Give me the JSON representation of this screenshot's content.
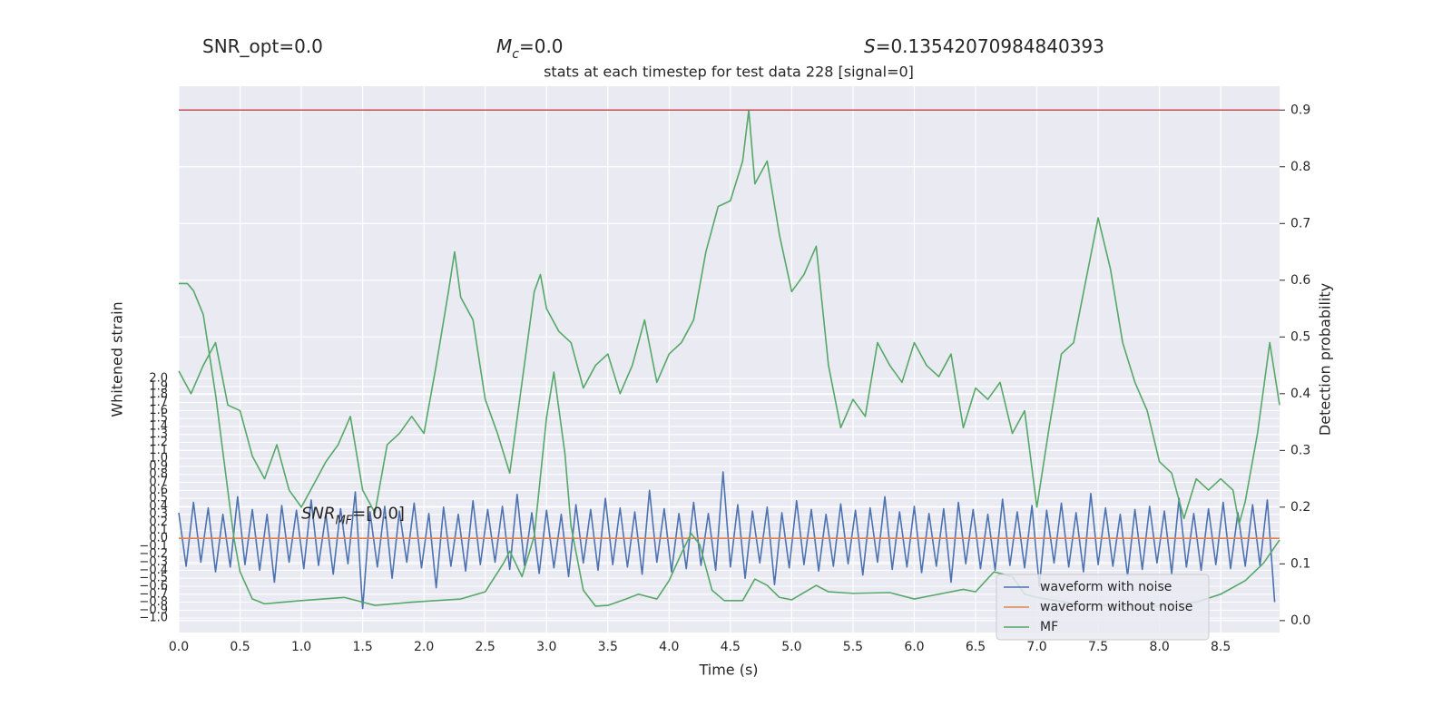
{
  "chart_data": {
    "type": "line",
    "annotations": [
      {
        "text": "SNR_opt=0.0"
      },
      {
        "symbol": "M",
        "subscript": "c",
        "text": "=0.0"
      },
      {
        "symbol": "S",
        "text": "=0.13542070984840393"
      },
      {
        "symbol": "SNR",
        "subscript": "MF",
        "text": "=[0.0]"
      }
    ],
    "title": "stats at each timestep for test data 228 [signal=0]",
    "xlabel": "Time (s)",
    "ylabel": "Whitened strain",
    "y2label": "Detection probability",
    "xlim": [
      0,
      8.98
    ],
    "ylim": [
      -1.18,
      5.66
    ],
    "y2lim": [
      -0.021,
      0.942
    ],
    "xticks": [
      {
        "value": 0,
        "label": "0.0"
      },
      0.5,
      {
        "value": 1,
        "label": "1.0"
      },
      1.5,
      {
        "value": 2,
        "label": "2.0"
      },
      2.5,
      {
        "value": 3,
        "label": "3.0"
      },
      3.5,
      {
        "value": 4,
        "label": "4.0"
      },
      4.5,
      {
        "value": 5,
        "label": "5.0"
      },
      5.5,
      {
        "value": 6,
        "label": "6.0"
      },
      6.5,
      {
        "value": 7,
        "label": "7.0"
      },
      7.5,
      {
        "value": 8,
        "label": "8.0"
      },
      8.5
    ],
    "yticks": [
      {
        "value": -1,
        "label": "−1.0"
      },
      {
        "value": -0.9,
        "label": "−0.9"
      },
      {
        "value": -0.8,
        "label": "−0.8"
      },
      {
        "value": -0.7,
        "label": "−0.7"
      },
      {
        "value": -0.6,
        "label": "−0.6"
      },
      {
        "value": -0.5,
        "label": "−0.5"
      },
      {
        "value": -0.4,
        "label": "−0.4"
      },
      {
        "value": -0.3,
        "label": "−0.3"
      },
      {
        "value": -0.2,
        "label": "−0.2"
      },
      {
        "value": -0.1,
        "label": "−0.1"
      },
      {
        "value": 0,
        "label": "0.0"
      },
      0.1,
      0.2,
      0.3,
      0.4,
      0.5,
      0.6,
      0.7,
      0.8,
      0.9,
      {
        "value": 1,
        "label": "1.0"
      },
      1.1,
      1.2,
      1.3,
      1.4,
      1.5,
      1.6,
      1.7,
      1.8,
      1.9,
      {
        "value": 2,
        "label": "2.0"
      }
    ],
    "y2ticks": [
      {
        "value": 0,
        "label": "0.0"
      },
      0.1,
      0.2,
      0.3,
      0.4,
      0.5,
      0.6,
      0.7,
      0.8,
      0.9
    ],
    "grid": true,
    "legend": "lower right",
    "hlines": [
      {
        "value": 0.9,
        "axis": "y2",
        "color": "#c44e52"
      }
    ],
    "series": [
      {
        "name": "waveform with noise",
        "color": "#4c72b0",
        "axis": "y",
        "x": [
          0,
          0.06,
          0.12,
          0.18,
          0.24,
          0.3,
          0.36,
          0.42,
          0.48,
          0.54,
          0.6,
          0.66,
          0.72,
          0.78,
          0.84,
          0.9,
          0.96,
          1.02,
          1.08,
          1.14,
          1.2,
          1.26,
          1.32,
          1.38,
          1.44,
          1.5,
          1.56,
          1.62,
          1.68,
          1.74,
          1.8,
          1.86,
          1.92,
          1.98,
          2.04,
          2.1,
          2.16,
          2.22,
          2.28,
          2.34,
          2.4,
          2.46,
          2.52,
          2.58,
          2.64,
          2.7,
          2.76,
          2.82,
          2.88,
          2.94,
          3.0,
          3.06,
          3.12,
          3.18,
          3.24,
          3.3,
          3.36,
          3.42,
          3.48,
          3.54,
          3.6,
          3.66,
          3.72,
          3.78,
          3.84,
          3.9,
          3.96,
          4.02,
          4.08,
          4.14,
          4.2,
          4.26,
          4.32,
          4.38,
          4.44,
          4.5,
          4.56,
          4.62,
          4.68,
          4.74,
          4.8,
          4.86,
          4.92,
          4.98,
          5.04,
          5.1,
          5.16,
          5.22,
          5.28,
          5.34,
          5.4,
          5.46,
          5.52,
          5.58,
          5.64,
          5.7,
          5.76,
          5.82,
          5.88,
          5.94,
          6.0,
          6.06,
          6.12,
          6.18,
          6.24,
          6.3,
          6.36,
          6.42,
          6.48,
          6.54,
          6.6,
          6.66,
          6.72,
          6.78,
          6.84,
          6.9,
          6.96,
          7.02,
          7.08,
          7.14,
          7.2,
          7.26,
          7.32,
          7.38,
          7.44,
          7.5,
          7.56,
          7.62,
          7.68,
          7.74,
          7.8,
          7.86,
          7.92,
          7.98,
          8.04,
          8.1,
          8.16,
          8.22,
          8.28,
          8.34,
          8.4,
          8.46,
          8.52,
          8.58,
          8.64,
          8.7,
          8.76,
          8.82,
          8.88,
          8.94
        ],
        "values": [
          0.32,
          -0.35,
          0.45,
          -0.3,
          0.38,
          -0.42,
          0.3,
          -0.36,
          0.52,
          -0.33,
          0.36,
          -0.4,
          0.3,
          -0.55,
          0.41,
          -0.3,
          0.35,
          -0.38,
          0.48,
          -0.34,
          0.3,
          -0.45,
          0.37,
          -0.32,
          0.58,
          -0.88,
          0.33,
          -0.36,
          0.4,
          -0.5,
          0.34,
          -0.3,
          0.44,
          -0.37,
          0.31,
          -0.62,
          0.39,
          -0.35,
          0.3,
          -0.41,
          0.47,
          -0.33,
          0.36,
          -0.3,
          0.4,
          -0.39,
          0.55,
          -0.34,
          0.32,
          -0.44,
          0.35,
          -0.37,
          0.3,
          -0.48,
          0.42,
          -0.31,
          0.36,
          -0.4,
          0.5,
          -0.33,
          0.38,
          -0.36,
          0.33,
          -0.45,
          0.6,
          -0.3,
          0.37,
          -0.42,
          0.31,
          -0.38,
          0.45,
          -0.34,
          0.31,
          -0.4,
          0.83,
          -0.36,
          0.42,
          -0.5,
          0.34,
          -0.31,
          0.39,
          -0.58,
          0.32,
          -0.37,
          0.47,
          -0.33,
          0.36,
          -0.41,
          0.3,
          -0.35,
          0.43,
          -0.32,
          0.35,
          -0.46,
          0.38,
          -0.3,
          0.52,
          -0.39,
          0.33,
          -0.36,
          0.4,
          -0.43,
          0.31,
          -0.35,
          0.37,
          -0.55,
          0.45,
          -0.32,
          0.36,
          -0.38,
          0.3,
          -0.4,
          0.49,
          -0.34,
          0.33,
          -0.37,
          0.41,
          -0.6,
          0.35,
          -0.31,
          0.44,
          -0.36,
          0.32,
          -0.42,
          0.56,
          -0.33,
          0.38,
          -0.35,
          0.3,
          -0.47,
          0.36,
          -0.39,
          0.4,
          -0.31,
          0.34,
          -0.44,
          0.5,
          -0.36,
          0.31,
          -0.4,
          0.37,
          -0.33,
          0.45,
          -0.38,
          0.32,
          -0.35,
          0.42,
          -0.34,
          0.48,
          -0.8
        ]
      },
      {
        "name": "waveform without noise",
        "color": "#dd8452",
        "axis": "y",
        "x": [
          0,
          8.98
        ],
        "values": [
          0,
          0
        ]
      },
      {
        "name": "MF",
        "color": "#55a868",
        "axis": "y",
        "x": [
          0,
          0.07,
          0.12,
          0.2,
          0.3,
          0.4,
          0.45,
          0.5,
          0.6,
          0.7,
          1.0,
          1.35,
          1.6,
          1.9,
          2.1,
          2.3,
          2.5,
          2.65,
          2.7,
          2.8,
          2.9,
          3.0,
          3.06,
          3.15,
          3.2,
          3.3,
          3.4,
          3.5,
          3.65,
          3.75,
          3.9,
          4.0,
          4.1,
          4.18,
          4.25,
          4.35,
          4.45,
          4.6,
          4.7,
          4.8,
          4.9,
          5.0,
          5.2,
          5.3,
          5.5,
          5.8,
          6.0,
          6.2,
          6.4,
          6.5,
          6.65,
          6.8,
          6.9,
          7.0,
          7.3,
          7.6,
          8.0,
          8.3,
          8.5,
          8.7,
          8.85,
          8.98
        ],
        "values": [
          3.19,
          3.19,
          3.1,
          2.8,
          1.8,
          0.6,
          0.0,
          -0.42,
          -0.76,
          -0.82,
          -0.78,
          -0.74,
          -0.84,
          -0.8,
          -0.78,
          -0.76,
          -0.67,
          -0.31,
          -0.16,
          -0.48,
          0.03,
          1.51,
          2.08,
          1.06,
          0.15,
          -0.65,
          -0.85,
          -0.84,
          -0.76,
          -0.7,
          -0.76,
          -0.53,
          -0.19,
          0.06,
          -0.08,
          -0.65,
          -0.78,
          -0.78,
          -0.51,
          -0.59,
          -0.74,
          -0.77,
          -0.59,
          -0.67,
          -0.69,
          -0.68,
          -0.76,
          -0.7,
          -0.64,
          -0.67,
          -0.42,
          -0.48,
          -0.7,
          -0.74,
          -0.82,
          -0.84,
          -0.85,
          -0.8,
          -0.7,
          -0.53,
          -0.31,
          -0.02
        ]
      },
      {
        "name": null,
        "color": "#55a868",
        "axis": "y2",
        "x": [
          0,
          0.1,
          0.2,
          0.3,
          0.4,
          0.5,
          0.6,
          0.7,
          0.8,
          0.9,
          1.0,
          1.1,
          1.2,
          1.3,
          1.4,
          1.5,
          1.6,
          1.7,
          1.8,
          1.9,
          2.0,
          2.1,
          2.2,
          2.25,
          2.3,
          2.4,
          2.5,
          2.6,
          2.7,
          2.8,
          2.9,
          2.95,
          3.0,
          3.1,
          3.2,
          3.3,
          3.4,
          3.5,
          3.6,
          3.7,
          3.8,
          3.9,
          4.0,
          4.1,
          4.2,
          4.3,
          4.4,
          4.5,
          4.6,
          4.65,
          4.7,
          4.8,
          4.9,
          5.0,
          5.1,
          5.2,
          5.3,
          5.4,
          5.5,
          5.6,
          5.7,
          5.8,
          5.9,
          6.0,
          6.1,
          6.2,
          6.3,
          6.4,
          6.5,
          6.6,
          6.7,
          6.8,
          6.9,
          7.0,
          7.1,
          7.2,
          7.3,
          7.4,
          7.5,
          7.6,
          7.7,
          7.8,
          7.9,
          8.0,
          8.1,
          8.2,
          8.3,
          8.4,
          8.5,
          8.6,
          8.65,
          8.7,
          8.8,
          8.9,
          8.98
        ],
        "values": [
          0.44,
          0.4,
          0.45,
          0.49,
          0.38,
          0.37,
          0.29,
          0.25,
          0.31,
          0.23,
          0.2,
          0.24,
          0.28,
          0.31,
          0.36,
          0.23,
          0.19,
          0.31,
          0.33,
          0.36,
          0.33,
          0.45,
          0.58,
          0.65,
          0.57,
          0.53,
          0.39,
          0.33,
          0.26,
          0.42,
          0.58,
          0.61,
          0.55,
          0.51,
          0.49,
          0.41,
          0.45,
          0.47,
          0.4,
          0.45,
          0.53,
          0.42,
          0.47,
          0.49,
          0.53,
          0.65,
          0.73,
          0.74,
          0.81,
          0.9,
          0.77,
          0.81,
          0.68,
          0.58,
          0.61,
          0.66,
          0.45,
          0.34,
          0.39,
          0.36,
          0.49,
          0.45,
          0.42,
          0.49,
          0.45,
          0.43,
          0.47,
          0.34,
          0.41,
          0.39,
          0.42,
          0.33,
          0.37,
          0.2,
          0.34,
          0.47,
          0.49,
          0.6,
          0.71,
          0.62,
          0.49,
          0.42,
          0.37,
          0.28,
          0.26,
          0.18,
          0.25,
          0.23,
          0.25,
          0.23,
          0.17,
          0.21,
          0.33,
          0.49,
          0.38
        ]
      }
    ]
  }
}
